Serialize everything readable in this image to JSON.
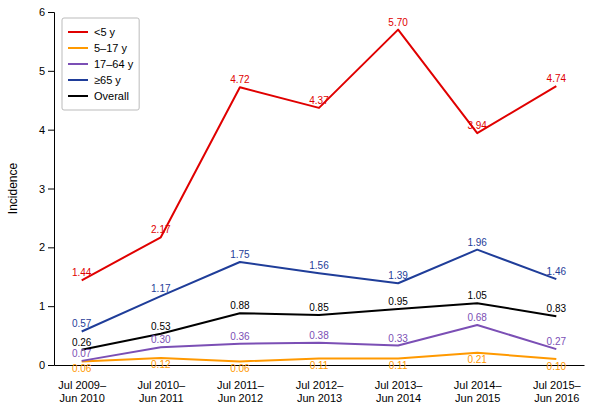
{
  "chart_data": {
    "type": "line",
    "categories": [
      "Jul 2009–\nJun 2010",
      "Jul 2010–\nJun 2011",
      "Jul 2011–\nJun 2012",
      "Jul 2012–\nJun 2013",
      "Jul 2013–\nJun 2014",
      "Jul 2014–\nJun 2015",
      "Jul 2015–\nJun 2016"
    ],
    "series": [
      {
        "name": "<5 y",
        "color": "#e00000",
        "values": [
          1.44,
          2.17,
          4.72,
          4.37,
          5.7,
          3.94,
          4.74
        ],
        "value_labels": [
          "1.44",
          "2.17",
          "4.72",
          "4.37",
          "5.70",
          "3.94",
          "4.74"
        ]
      },
      {
        "name": "5–17 y",
        "color": "#ff9900",
        "values": [
          0.06,
          0.12,
          0.06,
          0.11,
          0.11,
          0.21,
          0.1
        ],
        "value_labels": [
          "0.06",
          "0.12",
          "0.06",
          "0.11",
          "0.11",
          "0.21",
          "0.10"
        ]
      },
      {
        "name": "17–64 y",
        "color": "#7b4fb5",
        "values": [
          0.07,
          0.3,
          0.36,
          0.38,
          0.33,
          0.68,
          0.27
        ],
        "value_labels": [
          "0.07",
          "0.30",
          "0.36",
          "0.38",
          "0.33",
          "0.68",
          "0.27"
        ]
      },
      {
        "name": "≥65 y",
        "color": "#1f3d99",
        "values": [
          0.57,
          1.17,
          1.75,
          1.56,
          1.39,
          1.96,
          1.46
        ],
        "value_labels": [
          "0.57",
          "1.17",
          "1.75",
          "1.56",
          "1.39",
          "1.96",
          "1.46"
        ]
      },
      {
        "name": "Overall",
        "color": "#000000",
        "values": [
          0.26,
          0.53,
          0.88,
          0.85,
          0.95,
          1.05,
          0.83
        ],
        "value_labels": [
          "0.26",
          "0.53",
          "0.88",
          "0.85",
          "0.95",
          "1.05",
          "0.83"
        ]
      }
    ],
    "y_label": "Incidence",
    "ylim": [
      0,
      6
    ],
    "yticks": [
      0,
      1,
      2,
      3,
      4,
      5,
      6
    ],
    "data_labels": true,
    "legend": "upper left",
    "grid": false
  }
}
